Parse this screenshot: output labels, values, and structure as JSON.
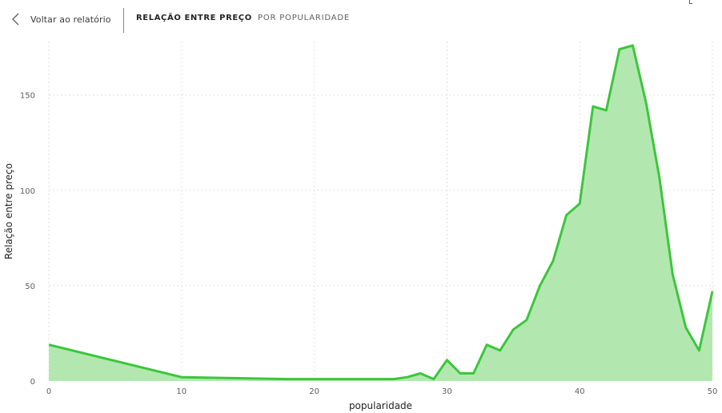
{
  "header": {
    "back_label": "Voltar ao relatório",
    "title_primary": "RELAÇÃO ENTRE PREÇO",
    "title_secondary": "POR POPULARIDADE"
  },
  "colors": {
    "line": "#3cc63c",
    "area": "#b2e8b0",
    "grid": "#e1dfdd",
    "text": "#252423"
  },
  "chart_data": {
    "type": "area",
    "xlabel": "popularidade",
    "ylabel": "Relação entre preço",
    "xlim": [
      0,
      50
    ],
    "ylim": [
      0,
      178
    ],
    "x_ticks": [
      0,
      10,
      20,
      30,
      40,
      50
    ],
    "y_ticks": [
      0,
      50,
      100,
      150
    ],
    "grid": true,
    "series": [
      {
        "x": [
          0,
          10,
          18,
          20,
          25,
          26,
          27,
          28,
          29,
          30,
          31,
          32,
          33,
          34,
          35,
          36,
          37,
          38,
          39,
          40,
          41,
          42,
          43,
          44,
          45,
          46,
          47,
          48,
          49,
          50
        ],
        "values": [
          19,
          2,
          1,
          1,
          1,
          1,
          2,
          4,
          1,
          11,
          4,
          4,
          19,
          16,
          27,
          32,
          50,
          63,
          87,
          93,
          144,
          142,
          174,
          176,
          146,
          107,
          56,
          28,
          16,
          47
        ]
      }
    ]
  }
}
